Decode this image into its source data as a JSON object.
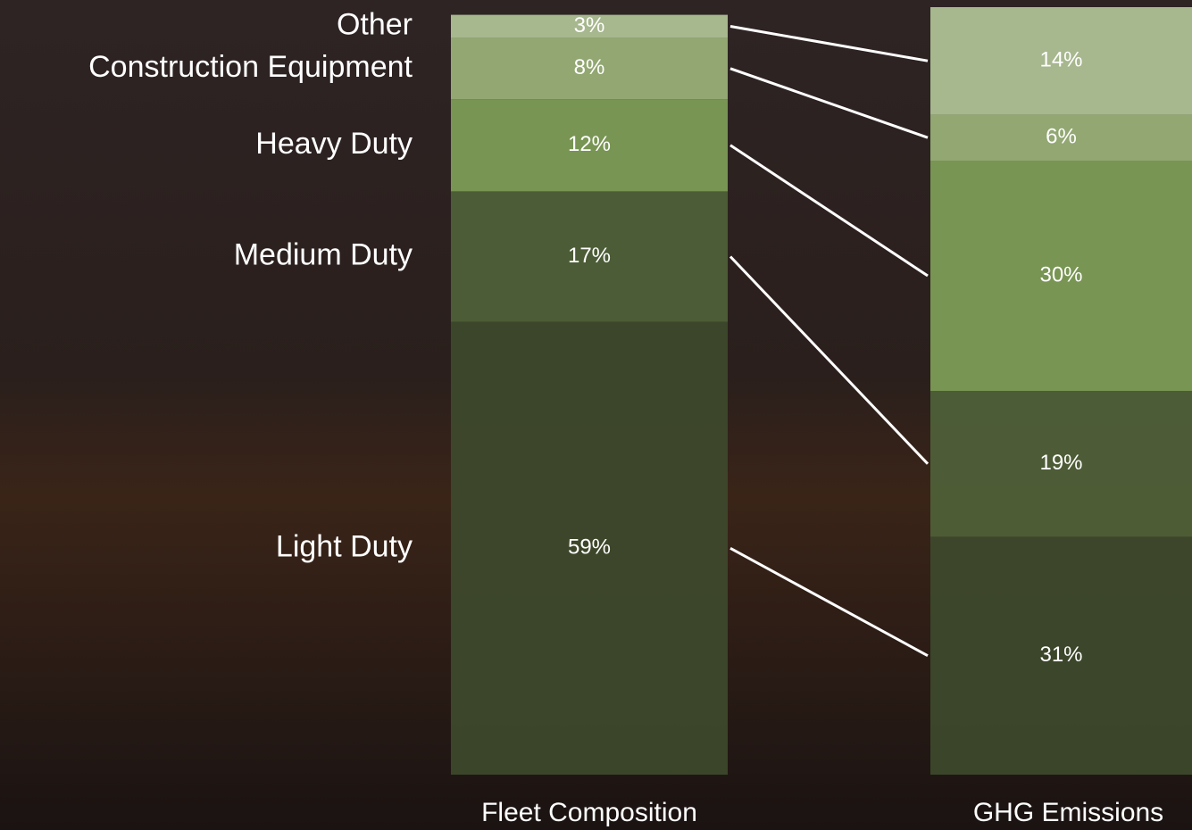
{
  "chart_data": {
    "type": "stacked-bar",
    "categories": [
      "Fleet Composition",
      "GHG Emissions"
    ],
    "series": [
      {
        "name": "Light Duty",
        "color": "#3e4a2c",
        "values": [
          59,
          31
        ],
        "value_labels": [
          "59%",
          "31%"
        ]
      },
      {
        "name": "Medium Duty",
        "color": "#4f6238",
        "values": [
          17,
          19
        ],
        "value_labels": [
          "17%",
          "19%"
        ]
      },
      {
        "name": "Heavy Duty",
        "color": "#7fa058",
        "values": [
          12,
          30
        ],
        "value_labels": [
          "12%",
          "30%"
        ]
      },
      {
        "name": "Construction Equipment",
        "color": "#9bb37a",
        "values": [
          8,
          6
        ],
        "value_labels": [
          "8%",
          "6%"
        ]
      },
      {
        "name": "Other",
        "color": "#b2c498",
        "values": [
          3,
          14
        ],
        "value_labels": [
          "3%",
          "14%"
        ]
      }
    ],
    "ylim": [
      0,
      100
    ]
  }
}
